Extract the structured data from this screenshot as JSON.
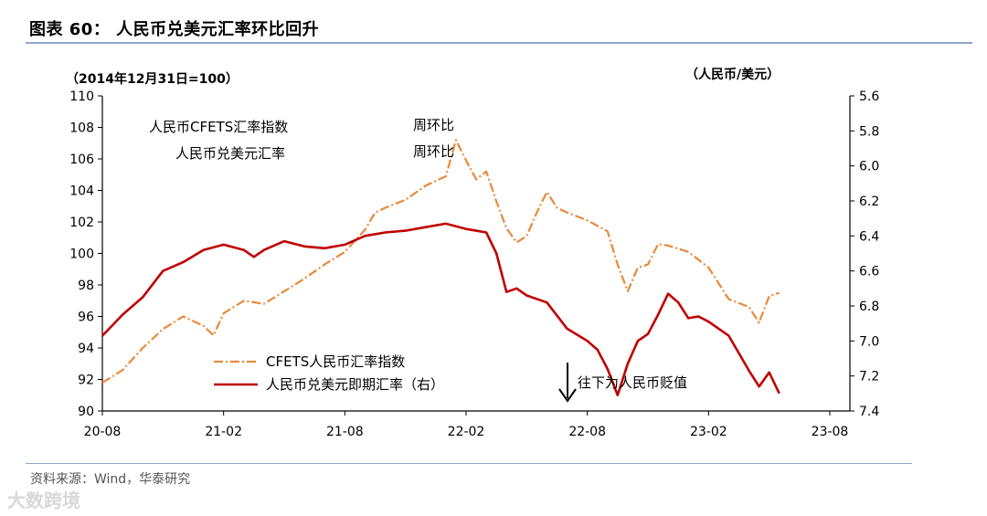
{
  "header": {
    "figure_title": "图表 60： 人民币兑美元汇率环比回升"
  },
  "footer": {
    "source": "资料来源：Wind，华泰研究",
    "watermark": "大数跨境"
  },
  "colors": {
    "cfets": "#e88a3a",
    "usdcny": "#c00000",
    "rule": "#8fa8cc"
  },
  "chart_data": {
    "type": "line",
    "left_axis_label": "（2014年12月31日=100）",
    "right_axis_label": "（人民币/美元）",
    "ylim_left": [
      90,
      110
    ],
    "ylim_right": [
      5.6,
      7.4
    ],
    "right_axis_inverted": true,
    "left_ticks": [
      "110",
      "108",
      "106",
      "104",
      "102",
      "100",
      "98",
      "96",
      "94",
      "92",
      "90"
    ],
    "right_ticks": [
      "5.6",
      "5.8",
      "6.0",
      "6.2",
      "6.4",
      "6.6",
      "6.8",
      "7.0",
      "7.2",
      "7.4"
    ],
    "x_ticks": [
      "20-08",
      "21-02",
      "21-08",
      "22-02",
      "22-08",
      "23-02",
      "23-08"
    ],
    "x_range": [
      "2020-08",
      "2023-09"
    ],
    "annotations": {
      "cfets_label": "人民币CFETS汇率指数",
      "cfets_change": "周环比",
      "usdcny_label": "人民币兑美元汇率",
      "usdcny_change": "周环比",
      "arrow_text": "往下为人民币贬值"
    },
    "series": [
      {
        "name": "CFETS人民币汇率指数",
        "axis": "left",
        "style": "dash-dot",
        "points": [
          [
            0.0,
            91.8
          ],
          [
            1.0,
            92.6
          ],
          [
            2.0,
            94.0
          ],
          [
            3.0,
            95.2
          ],
          [
            4.0,
            96.0
          ],
          [
            5.0,
            95.4
          ],
          [
            5.5,
            94.8
          ],
          [
            6.0,
            96.2
          ],
          [
            7.0,
            97.0
          ],
          [
            8.0,
            96.8
          ],
          [
            9.0,
            97.6
          ],
          [
            10.0,
            98.4
          ],
          [
            11.0,
            99.3
          ],
          [
            12.0,
            100.1
          ],
          [
            13.0,
            101.5
          ],
          [
            13.5,
            102.6
          ],
          [
            14.0,
            102.9
          ],
          [
            15.0,
            103.4
          ],
          [
            16.0,
            104.3
          ],
          [
            17.0,
            104.9
          ],
          [
            17.5,
            107.2
          ],
          [
            18.0,
            105.9
          ],
          [
            18.5,
            104.7
          ],
          [
            19.0,
            105.2
          ],
          [
            19.5,
            103.3
          ],
          [
            20.0,
            101.6
          ],
          [
            20.5,
            100.7
          ],
          [
            21.0,
            101.1
          ],
          [
            21.5,
            102.6
          ],
          [
            22.0,
            103.9
          ],
          [
            22.5,
            102.9
          ],
          [
            23.0,
            102.6
          ],
          [
            24.0,
            102.1
          ],
          [
            25.0,
            101.4
          ],
          [
            25.5,
            99.3
          ],
          [
            26.0,
            97.6
          ],
          [
            26.5,
            99.1
          ],
          [
            27.0,
            99.3
          ],
          [
            27.5,
            100.6
          ],
          [
            28.0,
            100.5
          ],
          [
            29.0,
            100.1
          ],
          [
            30.0,
            99.1
          ],
          [
            31.0,
            97.1
          ],
          [
            32.0,
            96.6
          ],
          [
            32.5,
            95.6
          ],
          [
            33.0,
            97.3
          ],
          [
            33.5,
            97.5
          ]
        ]
      },
      {
        "name": "人民币兑美元即期汇率（右）",
        "axis": "right",
        "style": "solid",
        "points": [
          [
            0.0,
            6.97
          ],
          [
            0.5,
            6.91
          ],
          [
            1.0,
            6.85
          ],
          [
            2.0,
            6.75
          ],
          [
            3.0,
            6.6
          ],
          [
            4.0,
            6.55
          ],
          [
            5.0,
            6.48
          ],
          [
            6.0,
            6.45
          ],
          [
            7.0,
            6.48
          ],
          [
            7.5,
            6.52
          ],
          [
            8.0,
            6.48
          ],
          [
            9.0,
            6.43
          ],
          [
            10.0,
            6.46
          ],
          [
            11.0,
            6.47
          ],
          [
            12.0,
            6.45
          ],
          [
            13.0,
            6.4
          ],
          [
            14.0,
            6.38
          ],
          [
            15.0,
            6.37
          ],
          [
            16.0,
            6.35
          ],
          [
            17.0,
            6.33
          ],
          [
            18.0,
            6.36
          ],
          [
            19.0,
            6.38
          ],
          [
            19.5,
            6.5
          ],
          [
            20.0,
            6.72
          ],
          [
            20.5,
            6.7
          ],
          [
            21.0,
            6.74
          ],
          [
            22.0,
            6.78
          ],
          [
            23.0,
            6.93
          ],
          [
            24.0,
            7.0
          ],
          [
            24.5,
            7.05
          ],
          [
            25.0,
            7.16
          ],
          [
            25.5,
            7.31
          ],
          [
            26.0,
            7.13
          ],
          [
            26.5,
            7.0
          ],
          [
            27.0,
            6.96
          ],
          [
            27.5,
            6.85
          ],
          [
            28.0,
            6.73
          ],
          [
            28.5,
            6.78
          ],
          [
            29.0,
            6.87
          ],
          [
            29.5,
            6.86
          ],
          [
            30.0,
            6.89
          ],
          [
            31.0,
            6.97
          ],
          [
            32.0,
            7.17
          ],
          [
            32.5,
            7.26
          ],
          [
            33.0,
            7.18
          ],
          [
            33.5,
            7.3
          ]
        ]
      }
    ]
  }
}
